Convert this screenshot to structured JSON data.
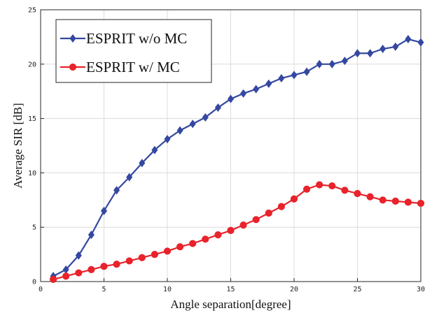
{
  "chart_data": {
    "type": "line",
    "title": "",
    "xlabel": "Angle separation[degree]",
    "ylabel": "Average SIR [dB]",
    "xlim": [
      0,
      30
    ],
    "ylim": [
      0,
      25
    ],
    "xticks": [
      0,
      5,
      10,
      15,
      20,
      25,
      30
    ],
    "yticks": [
      0,
      5,
      10,
      15,
      20,
      25
    ],
    "grid": true,
    "legend_position": "top-left",
    "x": [
      1,
      2,
      3,
      4,
      5,
      6,
      7,
      8,
      9,
      10,
      11,
      12,
      13,
      14,
      15,
      16,
      17,
      18,
      19,
      20,
      21,
      22,
      23,
      24,
      25,
      26,
      27,
      28,
      29,
      30
    ],
    "series": [
      {
        "name": "ESPRIT w/o MC",
        "color": "#3448a0",
        "marker": "diamond",
        "values": [
          0.5,
          1.1,
          2.4,
          4.3,
          6.5,
          8.4,
          9.6,
          10.9,
          12.1,
          13.1,
          13.9,
          14.5,
          15.1,
          16.0,
          16.8,
          17.3,
          17.7,
          18.2,
          18.7,
          19.0,
          19.3,
          20.0,
          20.0,
          20.3,
          21.0,
          21.0,
          21.4,
          21.6,
          22.3,
          22.0
        ]
      },
      {
        "name": "ESPRIT w/ MC",
        "color": "#e8232b",
        "marker": "circle",
        "values": [
          0.2,
          0.5,
          0.8,
          1.1,
          1.4,
          1.6,
          1.9,
          2.2,
          2.5,
          2.8,
          3.2,
          3.5,
          3.9,
          4.3,
          4.7,
          5.2,
          5.7,
          6.3,
          6.9,
          7.6,
          8.5,
          8.9,
          8.8,
          8.4,
          8.1,
          7.8,
          7.5,
          7.4,
          7.3,
          7.2
        ]
      }
    ]
  }
}
